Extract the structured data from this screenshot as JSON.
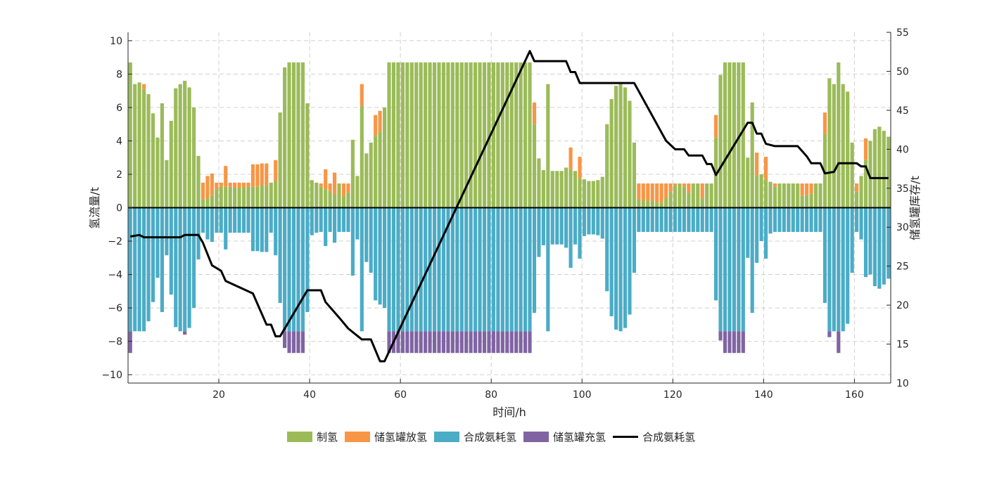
{
  "chart_data": {
    "type": "bar",
    "title": "",
    "xlabel": "时间/h",
    "ylabel": "氢流量/t",
    "y2label": "储氢罐库存/t",
    "xlim": [
      0,
      168
    ],
    "ylim": [
      -10.5,
      10.5
    ],
    "y2lim": [
      10,
      55
    ],
    "xticks": [
      20,
      40,
      60,
      80,
      100,
      120,
      140,
      160
    ],
    "yticks": [
      -10,
      -8,
      -6,
      -4,
      -2,
      0,
      2,
      4,
      6,
      8,
      10
    ],
    "y2ticks": [
      10,
      15,
      20,
      25,
      30,
      35,
      40,
      45,
      50,
      55
    ],
    "grid": true,
    "legend_position": "bottom-center",
    "colors": {
      "production": "#9BBB59",
      "discharge": "#F79646",
      "consumption": "#4BACC6",
      "charge": "#8064A2",
      "storage": "#000000"
    },
    "legend": [
      "制氢",
      "储氢罐放氢",
      "合成氨耗氢",
      "储氢罐充氢",
      "合成氨耗氢"
    ],
    "hours_start": 1,
    "series": [
      {
        "name": "制氢",
        "stack": "pos",
        "values": [
          8.7,
          7.4,
          7.5,
          7.1,
          6.8,
          5.65,
          4.2,
          6.25,
          2.85,
          5.2,
          7.15,
          7.4,
          7.6,
          7.2,
          6.0,
          3.1,
          0.5,
          0.55,
          0.75,
          1.1,
          1.25,
          1.25,
          1.25,
          1.2,
          1.2,
          1.2,
          1.25,
          1.25,
          1.25,
          1.35,
          1.35,
          1.5,
          1.6,
          5.7,
          8.4,
          8.7,
          8.7,
          8.7,
          8.7,
          6.25,
          1.65,
          1.5,
          1.25,
          1.1,
          1.0,
          0.8,
          1.45,
          0.7,
          0.9,
          4.07,
          1.9,
          6.1,
          3.25,
          3.9,
          4.3,
          4.55,
          6.0,
          8.7,
          8.7,
          8.7,
          8.7,
          8.7,
          8.7,
          8.7,
          8.7,
          8.7,
          8.7,
          8.7,
          8.7,
          8.7,
          8.7,
          8.7,
          8.7,
          8.7,
          8.7,
          8.7,
          8.7,
          8.7,
          8.7,
          8.7,
          8.7,
          8.7,
          8.7,
          8.7,
          8.7,
          8.7,
          8.7,
          8.7,
          8.7,
          5.0,
          2.95,
          2.25,
          7.4,
          2.2,
          2.2,
          2.2,
          2.4,
          2.3,
          2.2,
          1.75,
          1.7,
          1.6,
          1.6,
          1.65,
          1.85,
          5.0,
          6.5,
          7.3,
          7.4,
          7.2,
          6.4,
          3.9,
          0.5,
          0.4,
          0.45,
          0.4,
          0.3,
          0.3,
          0.55,
          0.95,
          1.35,
          1.45,
          1.25,
          0.9,
          1.45,
          1.45,
          0.55,
          1.45,
          1.45,
          4.2,
          7.95,
          8.7,
          8.7,
          8.7,
          8.7,
          8.7,
          3.0,
          6.3,
          1.95,
          2.0,
          1.7,
          1.55,
          1.25,
          1.45,
          1.45,
          1.45,
          1.45,
          1.45,
          0.7,
          0.75,
          0.85,
          1.45,
          1.45,
          4.4,
          7.75,
          7.4,
          8.7,
          7.4,
          6.95,
          3.9,
          0.95,
          1.9,
          2.85,
          4.0,
          4.7,
          4.85,
          4.6,
          4.25
        ]
      },
      {
        "name": "储氢罐放氢",
        "stack": "pos",
        "values": [
          0,
          0,
          0,
          0.3,
          0,
          0,
          0,
          0,
          0,
          0,
          0,
          0,
          0,
          0,
          0,
          0,
          1.0,
          1.35,
          1.3,
          0.4,
          0.25,
          1.25,
          0.25,
          0.3,
          0.3,
          0.3,
          0.25,
          1.35,
          1.35,
          1.3,
          1.3,
          0,
          1.25,
          0,
          0,
          0,
          0,
          0,
          0,
          0,
          0,
          0,
          0.2,
          1.2,
          0.45,
          1.3,
          0,
          0.75,
          0.55,
          0,
          0,
          1.3,
          0,
          0,
          1.25,
          1.25,
          0,
          0,
          0,
          0,
          0,
          0,
          0,
          0,
          0,
          0,
          0,
          0,
          0,
          0,
          0,
          0,
          0,
          0,
          0,
          0,
          0,
          0,
          0,
          0,
          0,
          0,
          0,
          0,
          0,
          0,
          0,
          0,
          0,
          1.3,
          0,
          0,
          0,
          0,
          0,
          0,
          0,
          1.3,
          0,
          1.3,
          0,
          0,
          0,
          0,
          0,
          0,
          0,
          0,
          0,
          0,
          0,
          0,
          0.95,
          1.05,
          1.0,
          1.05,
          1.15,
          1.15,
          0.9,
          0.5,
          0.1,
          0,
          0.2,
          0.55,
          0,
          0,
          0.9,
          0,
          0,
          1.35,
          0,
          0,
          0,
          0,
          0,
          0,
          0,
          0,
          1.35,
          0,
          1.35,
          0,
          0.2,
          0,
          0,
          0,
          0,
          0,
          0.75,
          0.7,
          0.6,
          0,
          0,
          1.3,
          0,
          0,
          0,
          0,
          0,
          0,
          0.5,
          0,
          1.3,
          0,
          0,
          0,
          0,
          0
        ]
      },
      {
        "name": "合成氨耗氢",
        "stack": "neg",
        "values": [
          -7.4,
          -7.4,
          -7.4,
          -7.4,
          -6.8,
          -5.65,
          -4.2,
          -6.25,
          -2.85,
          -5.2,
          -7.15,
          -7.4,
          -7.4,
          -7.2,
          -6.0,
          -3.1,
          -1.5,
          -1.9,
          -2.05,
          -1.5,
          -1.5,
          -2.5,
          -1.5,
          -1.5,
          -1.5,
          -1.5,
          -1.5,
          -2.6,
          -2.6,
          -2.65,
          -2.65,
          -1.5,
          -2.85,
          -5.7,
          -7.4,
          -7.4,
          -7.4,
          -7.4,
          -7.4,
          -6.25,
          -1.65,
          -1.5,
          -1.45,
          -2.3,
          -1.45,
          -2.1,
          -1.45,
          -1.45,
          -1.45,
          -4.07,
          -1.9,
          -7.4,
          -3.25,
          -3.9,
          -5.55,
          -5.8,
          -6.0,
          -7.4,
          -7.4,
          -7.4,
          -7.4,
          -7.4,
          -7.4,
          -7.4,
          -7.4,
          -7.4,
          -7.4,
          -7.4,
          -7.4,
          -7.4,
          -7.4,
          -7.4,
          -7.4,
          -7.4,
          -7.4,
          -7.4,
          -7.4,
          -7.4,
          -7.4,
          -7.4,
          -7.4,
          -7.4,
          -7.4,
          -7.4,
          -7.4,
          -7.4,
          -7.4,
          -7.4,
          -7.4,
          -6.3,
          -2.95,
          -2.25,
          -7.4,
          -2.2,
          -2.2,
          -2.2,
          -2.4,
          -3.6,
          -2.2,
          -3.05,
          -1.7,
          -1.6,
          -1.6,
          -1.65,
          -1.85,
          -5.0,
          -6.5,
          -7.3,
          -7.4,
          -7.2,
          -6.4,
          -3.9,
          -1.45,
          -1.45,
          -1.45,
          -1.45,
          -1.45,
          -1.45,
          -1.45,
          -1.45,
          -1.45,
          -1.45,
          -1.45,
          -1.45,
          -1.45,
          -1.45,
          -1.45,
          -1.45,
          -1.45,
          -5.55,
          -7.4,
          -7.4,
          -7.4,
          -7.4,
          -7.4,
          -7.4,
          -3.0,
          -6.3,
          -3.3,
          -2.0,
          -3.05,
          -1.55,
          -1.45,
          -1.45,
          -1.45,
          -1.45,
          -1.45,
          -1.45,
          -1.45,
          -1.45,
          -1.45,
          -1.45,
          -1.45,
          -5.7,
          -7.4,
          -7.4,
          -7.4,
          -7.4,
          -6.95,
          -3.9,
          -1.45,
          -1.9,
          -4.15,
          -4.0,
          -4.7,
          -4.85,
          -4.6,
          -4.25
        ]
      },
      {
        "name": "储氢罐充氢",
        "stack": "neg",
        "values": [
          -1.3,
          0,
          0,
          0,
          0,
          0,
          0,
          0,
          0,
          0,
          0,
          0,
          -0.2,
          0,
          0,
          0,
          0,
          0,
          0,
          0,
          0,
          0,
          0,
          0,
          0,
          0,
          0,
          0,
          0,
          0,
          0,
          0,
          0,
          0,
          -1.0,
          -1.3,
          -1.3,
          -1.3,
          -1.3,
          0,
          0,
          0,
          0,
          0,
          0,
          0,
          0,
          0,
          0,
          0,
          0,
          0,
          0,
          0,
          0,
          0,
          0,
          -1.3,
          -1.3,
          -1.3,
          -1.3,
          -1.3,
          -1.3,
          -1.3,
          -1.3,
          -1.3,
          -1.3,
          -1.3,
          -1.3,
          -1.3,
          -1.3,
          -1.3,
          -1.3,
          -1.3,
          -1.3,
          -1.3,
          -1.3,
          -1.3,
          -1.3,
          -1.3,
          -1.3,
          -1.3,
          -1.3,
          -1.3,
          -1.3,
          -1.3,
          -1.3,
          -1.3,
          -1.3,
          0,
          0,
          0,
          0,
          0,
          0,
          0,
          0,
          0,
          0,
          0,
          0,
          0,
          0,
          0,
          0,
          0,
          0,
          0,
          0,
          0,
          0,
          0,
          0,
          0,
          0,
          0,
          0,
          0,
          0,
          0,
          0,
          0,
          0,
          0,
          0,
          0,
          0,
          0,
          0,
          0,
          -0.55,
          -1.3,
          -1.3,
          -1.3,
          -1.3,
          -1.3,
          0,
          0,
          0,
          0,
          0,
          0,
          0,
          0,
          0,
          0,
          0,
          0,
          0,
          0,
          0,
          0,
          0,
          0,
          -0.35,
          0,
          -1.3,
          0,
          0,
          0,
          0,
          0,
          0,
          0,
          0,
          0,
          0,
          0
        ]
      },
      {
        "name": "合成氨耗氢",
        "type": "line",
        "axis": "right",
        "x": [
          1,
          3,
          4,
          12,
          13,
          16,
          17,
          19,
          21,
          22,
          28,
          31,
          32,
          33,
          34,
          40,
          43,
          44,
          47,
          49,
          52,
          54,
          56,
          57,
          89,
          90,
          97,
          98,
          99,
          100,
          112,
          119,
          121,
          123,
          124,
          127,
          128,
          129,
          130,
          137,
          138,
          139,
          140,
          141,
          143,
          148,
          150,
          151,
          153,
          154,
          156,
          157,
          161,
          162,
          163,
          164,
          168
        ],
        "y": [
          28.8,
          29.0,
          28.7,
          28.7,
          29.0,
          29.0,
          28.0,
          25.1,
          24.4,
          23.1,
          21.5,
          17.5,
          17.5,
          16.0,
          16.0,
          21.9,
          21.9,
          20.4,
          18.4,
          17.0,
          15.6,
          15.6,
          12.8,
          12.8,
          52.6,
          51.3,
          51.3,
          49.9,
          49.9,
          48.5,
          48.5,
          41.1,
          40.0,
          40.0,
          39.2,
          39.2,
          38.1,
          38.1,
          36.7,
          43.4,
          43.4,
          42.0,
          42.0,
          40.7,
          40.4,
          40.4,
          39.1,
          38.2,
          38.2,
          36.9,
          37.1,
          38.2,
          38.2,
          37.8,
          37.8,
          36.3,
          36.3
        ]
      }
    ]
  }
}
